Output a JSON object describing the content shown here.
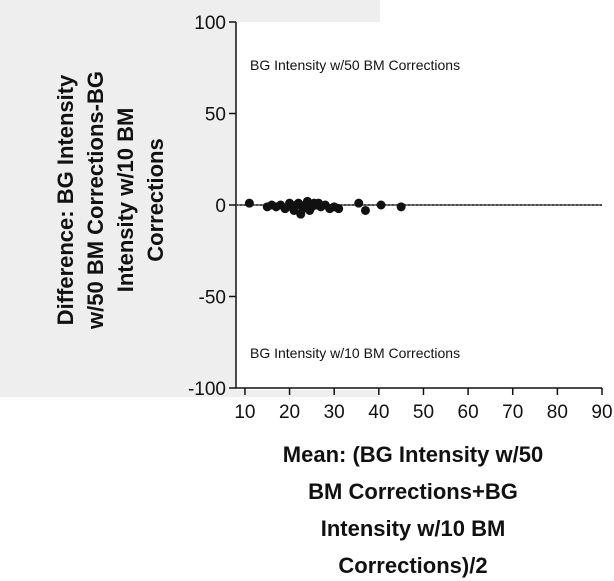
{
  "chart_data": {
    "type": "scatter",
    "ylabel_lines": [
      "Difference: BG Intensity",
      "w/50 BM Corrections-BG",
      "Intensity w/10 BM",
      "Corrections"
    ],
    "xlabel_lines": [
      "Mean: (BG Intensity w/50",
      "BM Corrections+BG",
      "Intensity w/10 BM",
      "Corrections)/2"
    ],
    "xlim": [
      8,
      90
    ],
    "ylim": [
      -100,
      100
    ],
    "x_ticks": [
      10,
      20,
      30,
      40,
      50,
      60,
      70,
      80,
      90
    ],
    "y_ticks": [
      100,
      50,
      0,
      -50,
      -100
    ],
    "annotations": {
      "upper": "BG Intensity w/50 BM Corrections",
      "lower": "BG Intensity w/10 BM Corrections"
    },
    "reference_line_y": 0,
    "points": [
      {
        "x": 11,
        "y": 1
      },
      {
        "x": 15,
        "y": -1
      },
      {
        "x": 16,
        "y": 0
      },
      {
        "x": 17,
        "y": -1
      },
      {
        "x": 18,
        "y": 0
      },
      {
        "x": 19,
        "y": -2
      },
      {
        "x": 20,
        "y": 1
      },
      {
        "x": 20.5,
        "y": -1
      },
      {
        "x": 21,
        "y": -3
      },
      {
        "x": 21.5,
        "y": 0
      },
      {
        "x": 22,
        "y": 1
      },
      {
        "x": 22.5,
        "y": -5
      },
      {
        "x": 23,
        "y": -2
      },
      {
        "x": 23.5,
        "y": 0
      },
      {
        "x": 24,
        "y": 2
      },
      {
        "x": 24.5,
        "y": -3
      },
      {
        "x": 25,
        "y": -1
      },
      {
        "x": 25.5,
        "y": 1
      },
      {
        "x": 26,
        "y": 0
      },
      {
        "x": 26.5,
        "y": 1
      },
      {
        "x": 27,
        "y": -1
      },
      {
        "x": 28,
        "y": 0
      },
      {
        "x": 29,
        "y": -2
      },
      {
        "x": 30,
        "y": -1
      },
      {
        "x": 31,
        "y": -2
      },
      {
        "x": 35.5,
        "y": 1
      },
      {
        "x": 37,
        "y": -3
      },
      {
        "x": 40.5,
        "y": 0
      },
      {
        "x": 45,
        "y": -1
      }
    ]
  }
}
